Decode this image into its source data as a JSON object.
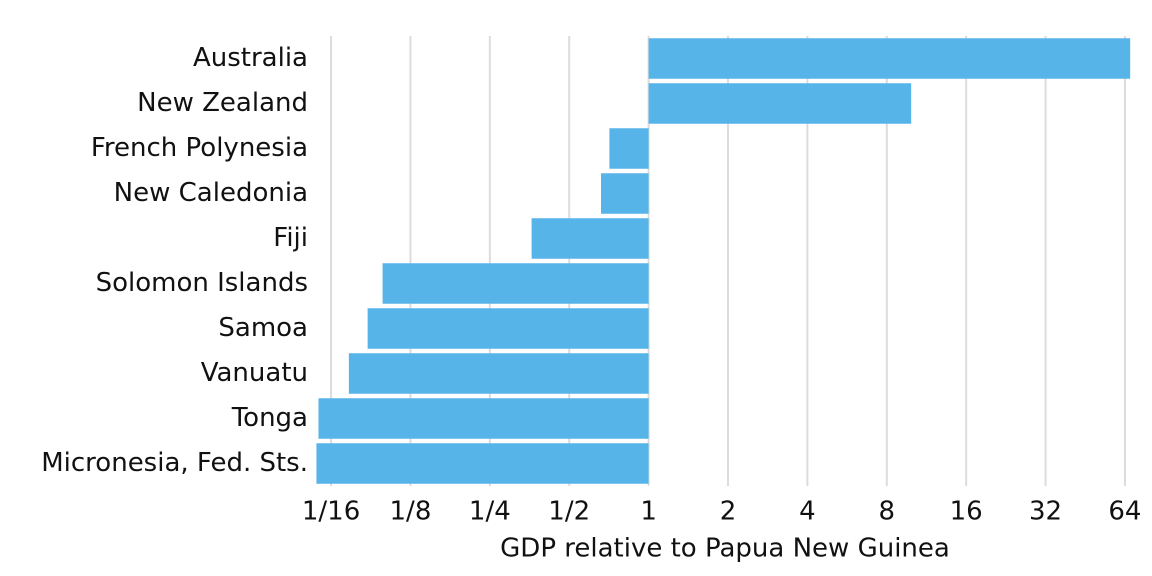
{
  "chart_data": {
    "type": "bar",
    "orientation": "horizontal",
    "log_scale": true,
    "log_base": 2,
    "xlabel": "GDP relative to Papua New Guinea",
    "categories": [
      "Australia",
      "New Zealand",
      "French Polynesia",
      "New Caledonia",
      "Fiji",
      "Solomon Islands",
      "Samoa",
      "Vanuatu",
      "Tonga",
      "Micronesia, Fed. Sts."
    ],
    "values": [
      67,
      9.9,
      0.71,
      0.66,
      0.36,
      0.098,
      0.086,
      0.073,
      0.056,
      0.055
    ],
    "color": "#56b4e9",
    "xlim": [
      0.052,
      73
    ],
    "xticks": [
      {
        "value": 0.0625,
        "label": "1/16"
      },
      {
        "value": 0.125,
        "label": "1/8"
      },
      {
        "value": 0.25,
        "label": "1/4"
      },
      {
        "value": 0.5,
        "label": "1/2"
      },
      1,
      2,
      4,
      8,
      16,
      32,
      64
    ],
    "grid": true
  }
}
